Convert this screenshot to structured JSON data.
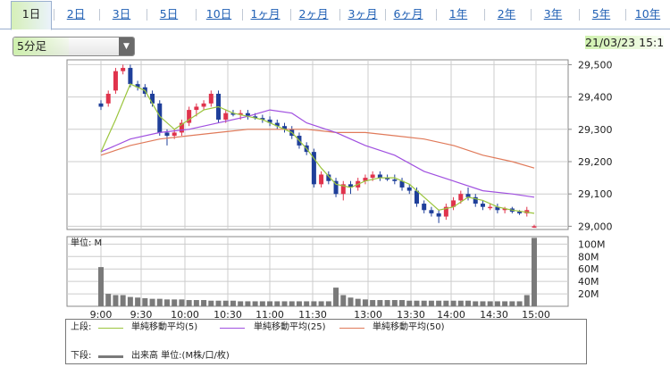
{
  "tabs": [
    {
      "label": "1日",
      "active": true
    },
    {
      "label": "2日"
    },
    {
      "label": "3日"
    },
    {
      "label": "5日"
    },
    {
      "label": "10日"
    },
    {
      "label": "1ヶ月"
    },
    {
      "label": "2ヶ月"
    },
    {
      "label": "3ヶ月"
    },
    {
      "label": "6ヶ月"
    },
    {
      "label": "1年"
    },
    {
      "label": "2年"
    },
    {
      "label": "3年"
    },
    {
      "label": "5年"
    },
    {
      "label": "10年"
    }
  ],
  "interval_select": {
    "value": "5分足"
  },
  "datetime": "21/03/23 15:1",
  "legend": {
    "upper_label": "上段:",
    "lower_label": "下段:",
    "items": [
      {
        "label": "単純移動平均(5)",
        "color": "#9bc53d"
      },
      {
        "label": "単純移動平均(25)",
        "color": "#a050e0"
      },
      {
        "label": "単純移動平均(50)",
        "color": "#e07a5a"
      }
    ],
    "volume_label": "出来高 単位:(M株/口/枚)"
  },
  "colors": {
    "up": "#e0334c",
    "down": "#1f3f9a",
    "volume": "#7a7a7a",
    "grid": "#cccccc"
  },
  "chart_data": {
    "type": "candlestick",
    "price_axis": {
      "ticks": [
        29000,
        29100,
        29200,
        29300,
        29400,
        29500
      ],
      "tick_labels": [
        "29,000",
        "29,100",
        "29,200",
        "29,300",
        "29,400",
        "29,500"
      ],
      "ylim": [
        28990,
        29515
      ]
    },
    "x_tick_labels": [
      "9:00",
      "9:30",
      "10:00",
      "10:30",
      "11:00",
      "11:30",
      "13:00",
      "13:30",
      "14:00",
      "14:30",
      "15:00"
    ],
    "candles": [
      [
        29380,
        29390,
        29360,
        29370
      ],
      [
        29380,
        29420,
        29370,
        29410
      ],
      [
        29420,
        29490,
        29410,
        29480
      ],
      [
        29480,
        29500,
        29470,
        29490
      ],
      [
        29490,
        29500,
        29430,
        29440
      ],
      [
        29440,
        29450,
        29420,
        29430
      ],
      [
        29430,
        29440,
        29400,
        29410
      ],
      [
        29410,
        29420,
        29370,
        29380
      ],
      [
        29380,
        29390,
        29280,
        29290
      ],
      [
        29290,
        29300,
        29250,
        29280
      ],
      [
        29280,
        29300,
        29270,
        29290
      ],
      [
        29290,
        29330,
        29280,
        29320
      ],
      [
        29320,
        29370,
        29310,
        29360
      ],
      [
        29360,
        29380,
        29340,
        29370
      ],
      [
        29370,
        29390,
        29360,
        29380
      ],
      [
        29380,
        29420,
        29370,
        29410
      ],
      [
        29410,
        29420,
        29320,
        29330
      ],
      [
        29330,
        29360,
        29320,
        29350
      ],
      [
        29350,
        29360,
        29340,
        29345
      ],
      [
        29345,
        29360,
        29330,
        29350
      ],
      [
        29350,
        29360,
        29330,
        29340
      ],
      [
        29340,
        29350,
        29330,
        29335
      ],
      [
        29335,
        29345,
        29320,
        29330
      ],
      [
        29330,
        29340,
        29310,
        29320
      ],
      [
        29320,
        29330,
        29300,
        29310
      ],
      [
        29310,
        29320,
        29290,
        29300
      ],
      [
        29300,
        29310,
        29270,
        29280
      ],
      [
        29280,
        29290,
        29240,
        29250
      ],
      [
        29250,
        29260,
        29220,
        29230
      ],
      [
        29230,
        29240,
        29120,
        29130
      ],
      [
        29130,
        29170,
        29120,
        29160
      ],
      [
        29160,
        29170,
        29130,
        29140
      ],
      [
        29140,
        29150,
        29090,
        29100
      ],
      [
        29100,
        29140,
        29080,
        29130
      ],
      [
        29130,
        29140,
        29100,
        29120
      ],
      [
        29120,
        29150,
        29110,
        29140
      ],
      [
        29140,
        29160,
        29130,
        29150
      ],
      [
        29150,
        29170,
        29140,
        29160
      ],
      [
        29160,
        29170,
        29140,
        29150
      ],
      [
        29150,
        29160,
        29140,
        29145
      ],
      [
        29145,
        29160,
        29130,
        29140
      ],
      [
        29140,
        29150,
        29110,
        29120
      ],
      [
        29120,
        29130,
        29100,
        29110
      ],
      [
        29110,
        29120,
        29060,
        29070
      ],
      [
        29070,
        29080,
        29040,
        29050
      ],
      [
        29050,
        29060,
        29030,
        29040
      ],
      [
        29040,
        29050,
        29010,
        29030
      ],
      [
        29030,
        29070,
        29020,
        29060
      ],
      [
        29060,
        29090,
        29050,
        29080
      ],
      [
        29080,
        29110,
        29070,
        29100
      ],
      [
        29100,
        29120,
        29080,
        29090
      ],
      [
        29090,
        29100,
        29060,
        29070
      ],
      [
        29070,
        29080,
        29050,
        29060
      ],
      [
        29060,
        29070,
        29050,
        29060
      ],
      [
        29060,
        29070,
        29040,
        29050
      ],
      [
        29050,
        29060,
        29040,
        29055
      ],
      [
        29055,
        29060,
        29040,
        29045
      ],
      [
        29045,
        29050,
        29035,
        29040
      ],
      [
        29040,
        29060,
        29030,
        29050
      ],
      [
        29000,
        29005,
        28995,
        29000
      ]
    ],
    "sma5": [
      [
        0,
        29230
      ],
      [
        2,
        29330
      ],
      [
        4,
        29440
      ],
      [
        6,
        29420
      ],
      [
        8,
        29340
      ],
      [
        10,
        29300
      ],
      [
        12,
        29330
      ],
      [
        14,
        29360
      ],
      [
        16,
        29370
      ],
      [
        18,
        29350
      ],
      [
        20,
        29340
      ],
      [
        22,
        29330
      ],
      [
        24,
        29310
      ],
      [
        26,
        29290
      ],
      [
        28,
        29240
      ],
      [
        30,
        29180
      ],
      [
        32,
        29130
      ],
      [
        34,
        29120
      ],
      [
        36,
        29140
      ],
      [
        38,
        29150
      ],
      [
        40,
        29150
      ],
      [
        42,
        29130
      ],
      [
        44,
        29090
      ],
      [
        46,
        29050
      ],
      [
        48,
        29060
      ],
      [
        50,
        29090
      ],
      [
        52,
        29080
      ],
      [
        54,
        29060
      ],
      [
        56,
        29050
      ],
      [
        59,
        29040
      ]
    ],
    "sma25": [
      [
        0,
        29230
      ],
      [
        4,
        29270
      ],
      [
        8,
        29290
      ],
      [
        12,
        29300
      ],
      [
        16,
        29320
      ],
      [
        20,
        29340
      ],
      [
        23,
        29360
      ],
      [
        26,
        29350
      ],
      [
        28,
        29320
      ],
      [
        32,
        29290
      ],
      [
        36,
        29250
      ],
      [
        40,
        29220
      ],
      [
        44,
        29170
      ],
      [
        48,
        29140
      ],
      [
        52,
        29110
      ],
      [
        56,
        29100
      ],
      [
        59,
        29090
      ]
    ],
    "sma50": [
      [
        0,
        29220
      ],
      [
        4,
        29250
      ],
      [
        8,
        29270
      ],
      [
        12,
        29280
      ],
      [
        16,
        29290
      ],
      [
        20,
        29300
      ],
      [
        24,
        29300
      ],
      [
        28,
        29300
      ],
      [
        32,
        29290
      ],
      [
        36,
        29290
      ],
      [
        40,
        29280
      ],
      [
        44,
        29270
      ],
      [
        48,
        29250
      ],
      [
        52,
        29220
      ],
      [
        56,
        29200
      ],
      [
        59,
        29180
      ]
    ],
    "volume": {
      "unit": "M",
      "axis_label": "単位: M",
      "ticks": [
        20,
        40,
        60,
        80,
        100
      ],
      "tick_labels": [
        "20M",
        "40M",
        "60M",
        "80M",
        "100M"
      ],
      "ylim": [
        0,
        112
      ],
      "values": [
        63,
        20,
        18,
        18,
        15,
        14,
        13,
        12,
        12,
        11,
        11,
        11,
        10,
        10,
        10,
        9,
        9,
        9,
        9,
        8,
        8,
        8,
        8,
        8,
        8,
        8,
        8,
        8,
        8,
        8,
        8,
        8,
        30,
        18,
        14,
        12,
        11,
        10,
        10,
        10,
        10,
        10,
        9,
        9,
        9,
        9,
        9,
        9,
        9,
        9,
        9,
        8,
        8,
        8,
        8,
        8,
        8,
        8,
        18,
        110
      ]
    }
  }
}
